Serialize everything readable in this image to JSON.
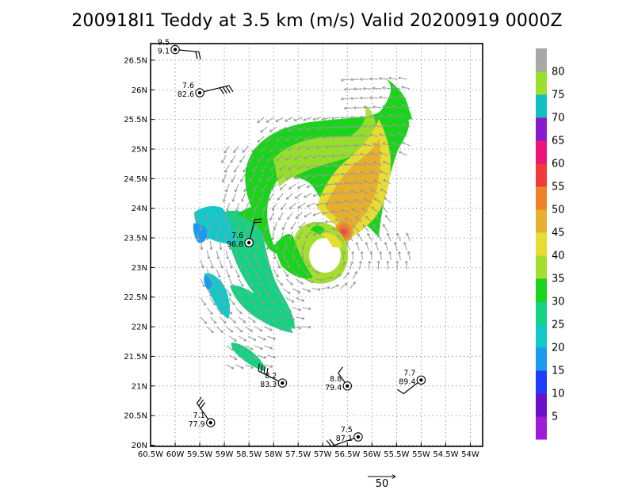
{
  "title": "200918I1 Teddy at 3.5 km (m/s) Valid 20200919 0000Z",
  "axes": {
    "lat_ticks": [
      "20N",
      "20.5N",
      "21N",
      "21.5N",
      "22N",
      "22.5N",
      "23N",
      "23.5N",
      "24N",
      "24.5N",
      "25N",
      "25.5N",
      "26N",
      "26.5N"
    ],
    "lon_ticks": [
      "60.5W",
      "60W",
      "59.5W",
      "59W",
      "58.5W",
      "58W",
      "57.5W",
      "57W",
      "56.5W",
      "56W",
      "55.5W",
      "55W",
      "54.5W",
      "54W"
    ],
    "lon_range": [
      -60.5,
      -53.75
    ],
    "lat_range": [
      19.98,
      26.78
    ],
    "grid": "dotted"
  },
  "colorbar": {
    "labels": [
      "5",
      "10",
      "15",
      "20",
      "25",
      "30",
      "35",
      "40",
      "45",
      "50",
      "55",
      "60",
      "65",
      "70",
      "75",
      "80"
    ],
    "colors": [
      "#a01bd8",
      "#6a10c8",
      "#1e3cff",
      "#1a9bf0",
      "#12c8c8",
      "#13d282",
      "#19d41a",
      "#a3df2d",
      "#e6dc32",
      "#e6af2d",
      "#f0822b",
      "#f03b3a",
      "#f0147a",
      "#8a1ad0",
      "#12c0c0",
      "#9be02d",
      "#a8a8a8"
    ]
  },
  "stations": [
    {
      "top": "9.5",
      "bottom": "9.1",
      "lon": -60.0,
      "lat": 26.68
    },
    {
      "top": "7.6",
      "bottom": "82.6",
      "lon": -59.5,
      "lat": 25.95
    },
    {
      "top": "7.6",
      "bottom": "96.8",
      "lon": -58.5,
      "lat": 23.42
    },
    {
      "top": "8.2",
      "bottom": "83.3",
      "lon": -57.82,
      "lat": 21.05
    },
    {
      "top": "8.8",
      "bottom": "79.4",
      "lon": -56.5,
      "lat": 21.0
    },
    {
      "top": "7.7",
      "bottom": "89.4",
      "lon": -55.0,
      "lat": 21.1
    },
    {
      "top": "7.1",
      "bottom": "77.9",
      "lon": -59.28,
      "lat": 20.38
    },
    {
      "top": "7.5",
      "bottom": "87.1",
      "lon": -56.28,
      "lat": 20.14
    }
  ],
  "reference_vector": {
    "label": "50"
  }
}
